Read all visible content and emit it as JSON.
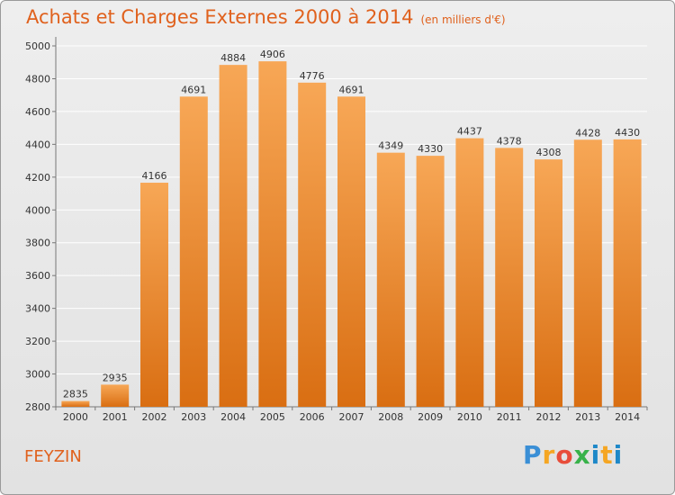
{
  "header": {
    "title": "Achats et Charges Externes 2000 à 2014",
    "unit": "(en milliers d'€)"
  },
  "footer": {
    "commune": "FEYZIN",
    "logo": "Proxiti"
  },
  "colors": {
    "bar_top": "#f7a756",
    "bar_bottom": "#d96e12",
    "title": "#e0611d",
    "background": "#e6e6e6"
  },
  "chart_data": {
    "type": "bar",
    "title": "Achats et Charges Externes 2000 à 2014",
    "subtitle": "(en milliers d'€)",
    "categories": [
      "2000",
      "2001",
      "2002",
      "2003",
      "2004",
      "2005",
      "2006",
      "2007",
      "2008",
      "2009",
      "2010",
      "2011",
      "2012",
      "2013",
      "2014"
    ],
    "values": [
      2835,
      2935,
      4166,
      4691,
      4884,
      4906,
      4776,
      4691,
      4349,
      4330,
      4437,
      4378,
      4308,
      4428,
      4430
    ],
    "ylim": [
      2800,
      5000
    ],
    "yticks": [
      2800,
      3000,
      3200,
      3400,
      3600,
      3800,
      4000,
      4200,
      4400,
      4600,
      4800,
      5000
    ],
    "grid": true,
    "legend": "none"
  }
}
